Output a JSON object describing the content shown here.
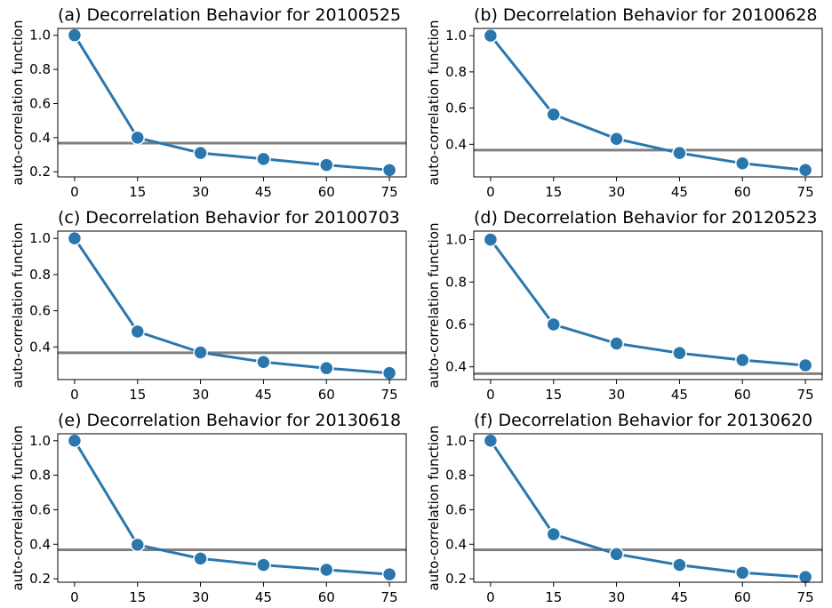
{
  "figure": {
    "colors": {
      "series": "#2a77ae",
      "marker_edge": "#ffffff",
      "threshold": "#808080",
      "axes": "#000000"
    }
  },
  "chart_data": [
    {
      "type": "line",
      "title": "(a) Decorrelation Behavior for 20100525",
      "xlabel": "",
      "ylabel": "auto-correlation function",
      "x": [
        0,
        15,
        30,
        45,
        60,
        75
      ],
      "x_ticks": [
        "0",
        "15",
        "30",
        "45",
        "60",
        "75"
      ],
      "y_ticks": [
        "0.2",
        "0.4",
        "0.6",
        "0.8",
        "1.0"
      ],
      "ylim": [
        0.17,
        1.04
      ],
      "xlim": [
        -4,
        79
      ],
      "series": [
        {
          "values": [
            1.0,
            0.4,
            0.31,
            0.275,
            0.24,
            0.21
          ]
        }
      ],
      "threshold": 0.368,
      "grid": false
    },
    {
      "type": "line",
      "title": "(b) Decorrelation Behavior for 20100628",
      "xlabel": "",
      "ylabel": "auto-correlation function",
      "x": [
        0,
        15,
        30,
        45,
        60,
        75
      ],
      "x_ticks": [
        "0",
        "15",
        "30",
        "45",
        "60",
        "75"
      ],
      "y_ticks": [
        "0.4",
        "0.6",
        "0.8",
        "1.0"
      ],
      "ylim": [
        0.22,
        1.04
      ],
      "xlim": [
        -4,
        79
      ],
      "series": [
        {
          "values": [
            1.0,
            0.565,
            0.43,
            0.352,
            0.295,
            0.258
          ]
        }
      ],
      "threshold": 0.368,
      "grid": false
    },
    {
      "type": "line",
      "title": "(c) Decorrelation Behavior for 20100703",
      "xlabel": "",
      "ylabel": "auto-correlation function",
      "x": [
        0,
        15,
        30,
        45,
        60,
        75
      ],
      "x_ticks": [
        "0",
        "15",
        "30",
        "45",
        "60",
        "75"
      ],
      "y_ticks": [
        "0.4",
        "0.6",
        "0.8",
        "1.0"
      ],
      "ylim": [
        0.22,
        1.04
      ],
      "xlim": [
        -4,
        79
      ],
      "series": [
        {
          "values": [
            1.0,
            0.485,
            0.37,
            0.317,
            0.283,
            0.256
          ]
        }
      ],
      "threshold": 0.368,
      "grid": false
    },
    {
      "type": "line",
      "title": "(d) Decorrelation Behavior for 20120523",
      "xlabel": "",
      "ylabel": "auto-correlation function",
      "x": [
        0,
        15,
        30,
        45,
        60,
        75
      ],
      "x_ticks": [
        "0",
        "15",
        "30",
        "45",
        "60",
        "75"
      ],
      "y_ticks": [
        "0.4",
        "0.6",
        "0.8",
        "1.0"
      ],
      "ylim": [
        0.34,
        1.04
      ],
      "xlim": [
        -4,
        79
      ],
      "series": [
        {
          "values": [
            1.0,
            0.6,
            0.51,
            0.465,
            0.432,
            0.407
          ]
        }
      ],
      "threshold": 0.368,
      "grid": false
    },
    {
      "type": "line",
      "title": "(e) Decorrelation Behavior for 20130618",
      "xlabel": "",
      "ylabel": "auto-correlation function",
      "x": [
        0,
        15,
        30,
        45,
        60,
        75
      ],
      "x_ticks": [
        "0",
        "15",
        "30",
        "45",
        "60",
        "75"
      ],
      "y_ticks": [
        "0.2",
        "0.4",
        "0.6",
        "0.8",
        "1.0"
      ],
      "ylim": [
        0.18,
        1.04
      ],
      "xlim": [
        -4,
        79
      ],
      "series": [
        {
          "values": [
            1.0,
            0.397,
            0.317,
            0.28,
            0.252,
            0.226
          ]
        }
      ],
      "threshold": 0.368,
      "grid": false
    },
    {
      "type": "line",
      "title": "(f) Decorrelation Behavior for 20130620",
      "xlabel": "",
      "ylabel": "auto-correlation function",
      "x": [
        0,
        15,
        30,
        45,
        60,
        75
      ],
      "x_ticks": [
        "0",
        "15",
        "30",
        "45",
        "60",
        "75"
      ],
      "y_ticks": [
        "0.2",
        "0.4",
        "0.6",
        "0.8",
        "1.0"
      ],
      "ylim": [
        0.18,
        1.04
      ],
      "xlim": [
        -4,
        79
      ],
      "series": [
        {
          "values": [
            1.0,
            0.458,
            0.343,
            0.28,
            0.235,
            0.21
          ]
        }
      ],
      "threshold": 0.368,
      "grid": false
    }
  ]
}
